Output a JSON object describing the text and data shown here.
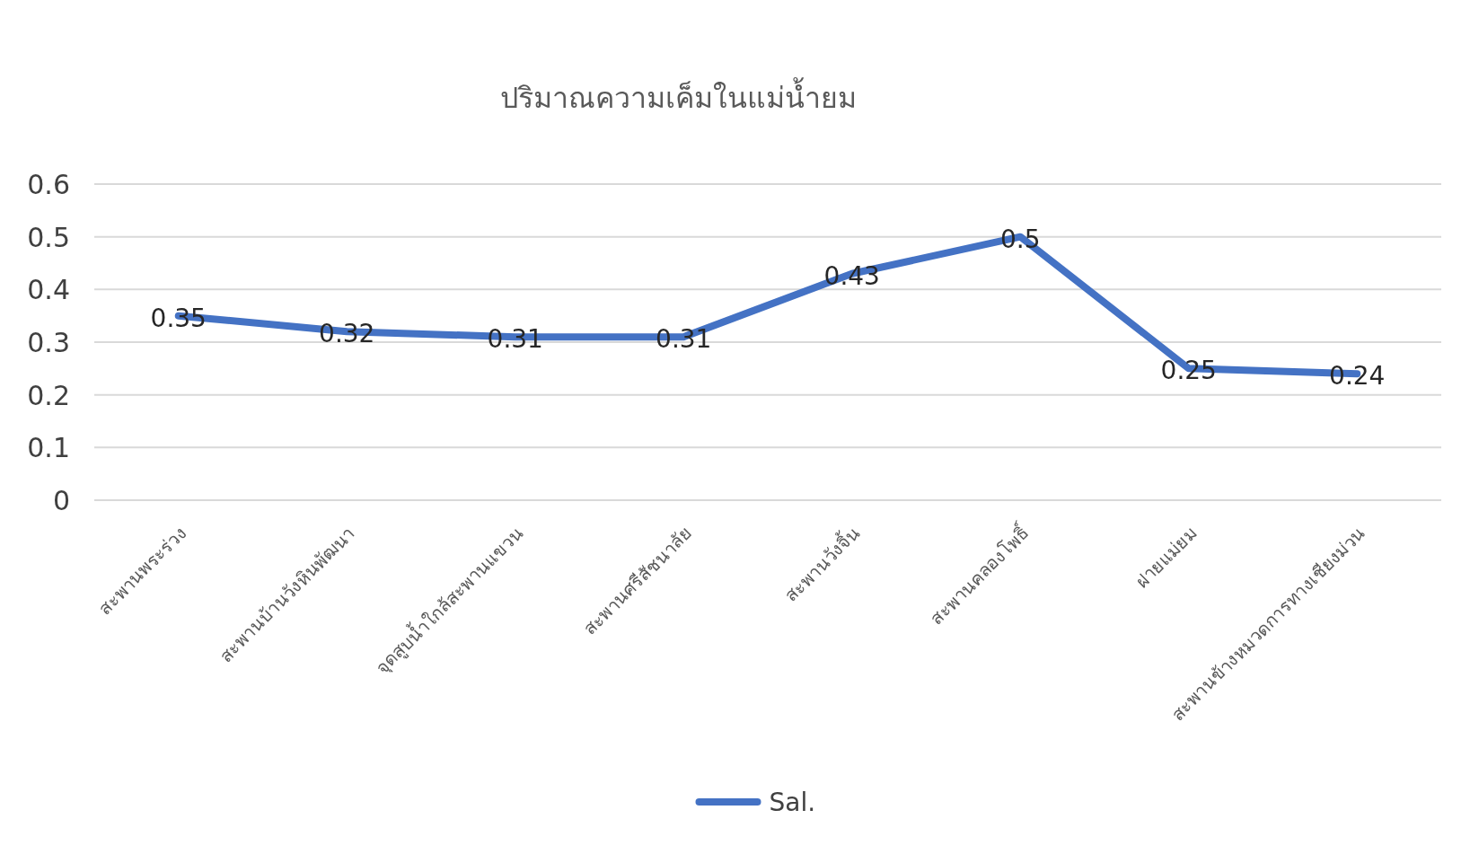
{
  "chart_data": {
    "type": "line",
    "title": "ปริมาณความเค็มในแม่น้ำยม",
    "categories": [
      "สะพานพระร่วง",
      "สะพานบ้านวังหินพัฒนา",
      "จุดสูบน้ำใกล้สะพานแขวน",
      "สะพานศรีสัชนาลัย",
      "สะพานวังจิ้น",
      "สะพานคลองโพธิ์",
      "ฝายแม่ยม",
      "สะพานข้างหมวดการทางเชียงม่วน"
    ],
    "series": [
      {
        "name": "Sal.",
        "color": "#4472c4",
        "values": [
          0.35,
          0.32,
          0.31,
          0.31,
          0.43,
          0.5,
          0.25,
          0.24
        ]
      }
    ],
    "ylim": [
      0,
      0.6
    ],
    "yticks": [
      0,
      0.1,
      0.2,
      0.3,
      0.4,
      0.5,
      0.6
    ],
    "grid": "y",
    "legend": "bottom",
    "data_labels": true,
    "marker": "none",
    "line_style": "solid"
  }
}
